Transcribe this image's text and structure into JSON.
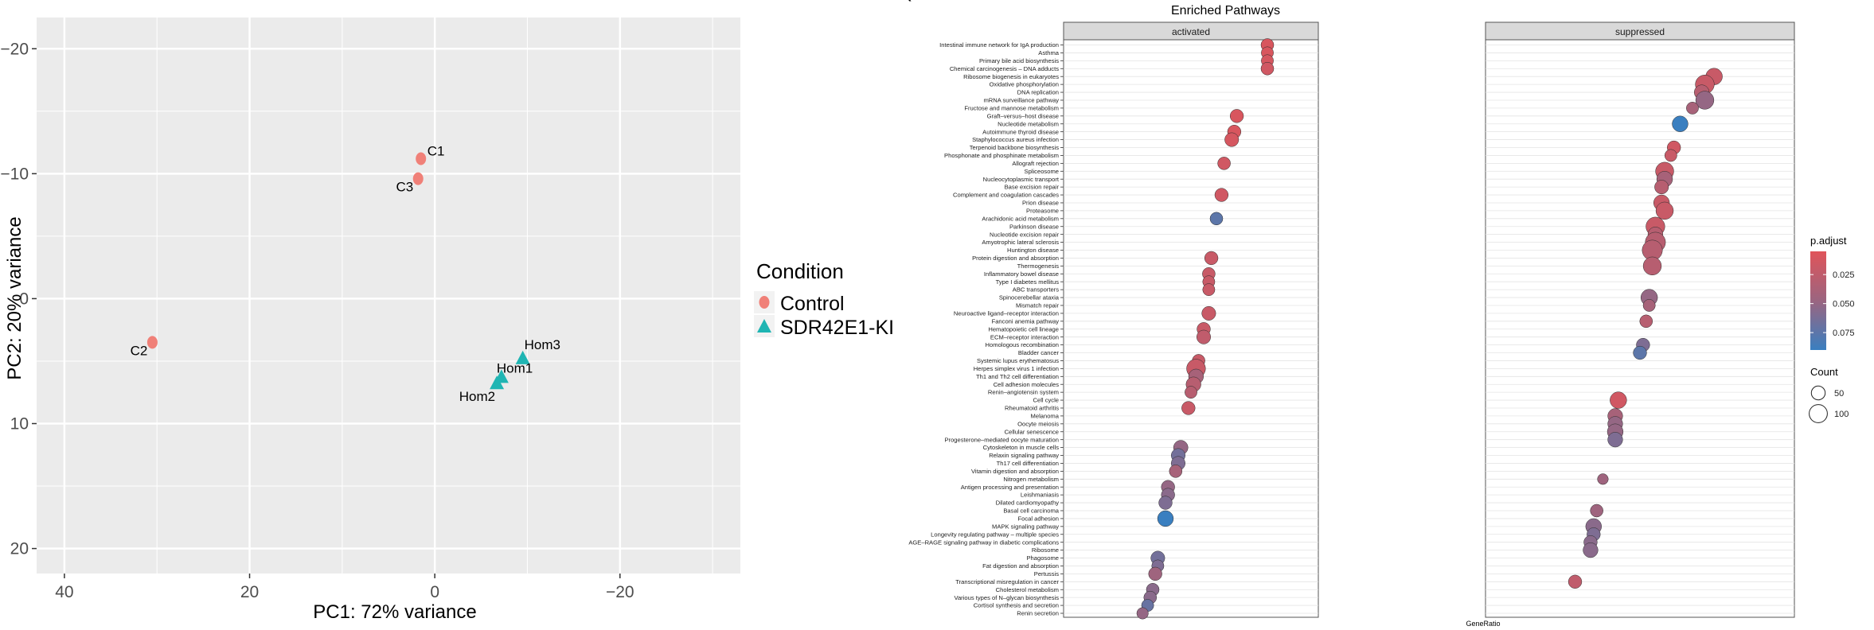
{
  "panel_label_fragment": "(",
  "colors": {
    "control": "#F08078",
    "ki": "#1FB5B3",
    "panel_bg": "#EBEBEB",
    "grid": "#FFFFFF",
    "strip_bg": "#D9D9D9",
    "padj_high": "#E0545A",
    "padj_low": "#3A7FC0"
  },
  "chart_data": [
    {
      "type": "scatter",
      "title": "",
      "xlabel": "PC1: 72% variance",
      "ylabel": "PC2: 20% variance",
      "x_reversed": true,
      "y_reversed": true,
      "xlim": [
        43,
        -33
      ],
      "ylim": [
        -22.5,
        22
      ],
      "xticks": [
        40,
        20,
        0,
        -20
      ],
      "yticks": [
        -20,
        -10,
        0,
        10,
        20
      ],
      "grid": true,
      "legend": {
        "title": "Condition",
        "placement": "right",
        "entries": [
          {
            "label": "Control",
            "shape": "circle",
            "color": "#F08078"
          },
          {
            "label": "SDR42E1-KI",
            "shape": "triangle",
            "color": "#1FB5B3"
          }
        ]
      },
      "points": [
        {
          "label": "C1",
          "group": "Control",
          "x": 1.5,
          "y": -11.2
        },
        {
          "label": "C3",
          "group": "Control",
          "x": 1.8,
          "y": -9.6
        },
        {
          "label": "C2",
          "group": "Control",
          "x": 30.5,
          "y": 3.5
        },
        {
          "label": "Hom3",
          "group": "SDR42E1-KI",
          "x": -9.5,
          "y": 4.8
        },
        {
          "label": "Hom1",
          "group": "SDR42E1-KI",
          "x": -7.2,
          "y": 6.3
        },
        {
          "label": "Hom2",
          "group": "SDR42E1-KI",
          "x": -6.7,
          "y": 6.8
        }
      ]
    },
    {
      "type": "scatter",
      "title": "Enriched Pathways",
      "xlabel": "GeneRatio",
      "ylabel": "",
      "facets": [
        "activated",
        "suppressed"
      ],
      "xlim": [
        0,
        1
      ],
      "legend": {
        "placement": "right",
        "color_title": "p.adjust",
        "color_ticks": [
          0.025,
          0.05,
          0.075
        ],
        "color_range": [
          0.005,
          0.09
        ],
        "size_title": "Count",
        "size_ticks": [
          50,
          100
        ]
      },
      "pathways": [
        {
          "name": "Intestinal immune network for IgA production",
          "facet": "activated",
          "x": 0.8,
          "count": 40,
          "padj": 0.01
        },
        {
          "name": "Asthma",
          "facet": "activated",
          "x": 0.8,
          "count": 35,
          "padj": 0.01
        },
        {
          "name": "Primary bile acid biosynthesis",
          "facet": "activated",
          "x": 0.8,
          "count": 35,
          "padj": 0.012
        },
        {
          "name": "Chemical carcinogenesis – DNA adducts",
          "facet": "activated",
          "x": 0.8,
          "count": 40,
          "padj": 0.015
        },
        {
          "name": "Ribosome biogenesis in eukaryotes",
          "facet": "suppressed",
          "x": 0.74,
          "count": 80,
          "padj": 0.02
        },
        {
          "name": "Oxidative phosphorylation",
          "facet": "suppressed",
          "x": 0.71,
          "count": 110,
          "padj": 0.02
        },
        {
          "name": "DNA replication",
          "facet": "suppressed",
          "x": 0.7,
          "count": 60,
          "padj": 0.03
        },
        {
          "name": "mRNA surveillance pathway",
          "facet": "suppressed",
          "x": 0.71,
          "count": 100,
          "padj": 0.05
        },
        {
          "name": "Fructose and mannose metabolism",
          "facet": "suppressed",
          "x": 0.67,
          "count": 35,
          "padj": 0.04
        },
        {
          "name": "Graft–versus–host disease",
          "facet": "activated",
          "x": 0.68,
          "count": 45,
          "padj": 0.01
        },
        {
          "name": "Nucleotide metabolism",
          "facet": "suppressed",
          "x": 0.63,
          "count": 70,
          "padj": 0.09
        },
        {
          "name": "Autoimmune thyroid disease",
          "facet": "activated",
          "x": 0.67,
          "count": 45,
          "padj": 0.01
        },
        {
          "name": "Staphylococcus aureus infection",
          "facet": "activated",
          "x": 0.66,
          "count": 50,
          "padj": 0.012
        },
        {
          "name": "Terpenoid backbone biosynthesis",
          "facet": "suppressed",
          "x": 0.61,
          "count": 45,
          "padj": 0.015
        },
        {
          "name": "Phosphonate and phosphinate metabolism",
          "facet": "suppressed",
          "x": 0.6,
          "count": 35,
          "padj": 0.02
        },
        {
          "name": "Allograft rejection",
          "facet": "activated",
          "x": 0.63,
          "count": 40,
          "padj": 0.015
        },
        {
          "name": "Spliceosome",
          "facet": "suppressed",
          "x": 0.58,
          "count": 100,
          "padj": 0.02
        },
        {
          "name": "Nucleocytoplasmic transport",
          "facet": "suppressed",
          "x": 0.58,
          "count": 70,
          "padj": 0.04
        },
        {
          "name": "Base excision repair",
          "facet": "suppressed",
          "x": 0.57,
          "count": 50,
          "padj": 0.03
        },
        {
          "name": "Complement and coagulation cascades",
          "facet": "activated",
          "x": 0.62,
          "count": 45,
          "padj": 0.015
        },
        {
          "name": "Prion disease",
          "facet": "suppressed",
          "x": 0.57,
          "count": 70,
          "padj": 0.02
        },
        {
          "name": "Proteasome",
          "facet": "suppressed",
          "x": 0.58,
          "count": 90,
          "padj": 0.02
        },
        {
          "name": "Arachidonic acid metabolism",
          "facet": "activated",
          "x": 0.6,
          "count": 40,
          "padj": 0.075
        },
        {
          "name": "Parkinson disease",
          "facet": "suppressed",
          "x": 0.55,
          "count": 110,
          "padj": 0.02
        },
        {
          "name": "Nucleotide excision repair",
          "facet": "suppressed",
          "x": 0.55,
          "count": 60,
          "padj": 0.03
        },
        {
          "name": "Amyotrophic lateral sclerosis",
          "facet": "suppressed",
          "x": 0.55,
          "count": 130,
          "padj": 0.03
        },
        {
          "name": "Huntington disease",
          "facet": "suppressed",
          "x": 0.54,
          "count": 130,
          "padj": 0.03
        },
        {
          "name": "Protein digestion and absorption",
          "facet": "activated",
          "x": 0.58,
          "count": 45,
          "padj": 0.02
        },
        {
          "name": "Thermogenesis",
          "facet": "suppressed",
          "x": 0.54,
          "count": 100,
          "padj": 0.03
        },
        {
          "name": "Inflammatory bowel disease",
          "facet": "activated",
          "x": 0.57,
          "count": 40,
          "padj": 0.02
        },
        {
          "name": "Type I diabetes mellitus",
          "facet": "activated",
          "x": 0.57,
          "count": 35,
          "padj": 0.02
        },
        {
          "name": "ABC transporters",
          "facet": "activated",
          "x": 0.57,
          "count": 35,
          "padj": 0.02
        },
        {
          "name": "Spinocerebellar ataxia",
          "facet": "suppressed",
          "x": 0.53,
          "count": 80,
          "padj": 0.05
        },
        {
          "name": "Mismatch repair",
          "facet": "suppressed",
          "x": 0.53,
          "count": 35,
          "padj": 0.04
        },
        {
          "name": "Neuroactive ligand–receptor interaction",
          "facet": "activated",
          "x": 0.57,
          "count": 50,
          "padj": 0.02
        },
        {
          "name": "Fanconi anemia pathway",
          "facet": "suppressed",
          "x": 0.52,
          "count": 40,
          "padj": 0.03
        },
        {
          "name": "Hematopoietic cell lineage",
          "facet": "activated",
          "x": 0.55,
          "count": 45,
          "padj": 0.02
        },
        {
          "name": "ECM–receptor interaction",
          "facet": "activated",
          "x": 0.55,
          "count": 50,
          "padj": 0.025
        },
        {
          "name": "Homologous recombination",
          "facet": "suppressed",
          "x": 0.51,
          "count": 45,
          "padj": 0.06
        },
        {
          "name": "Bladder cancer",
          "facet": "suppressed",
          "x": 0.5,
          "count": 45,
          "padj": 0.075
        },
        {
          "name": "Systemic lupus erythematosus",
          "facet": "activated",
          "x": 0.53,
          "count": 40,
          "padj": 0.02
        },
        {
          "name": "Herpes simplex virus 1 infection",
          "facet": "activated",
          "x": 0.52,
          "count": 110,
          "padj": 0.02
        },
        {
          "name": "Th1 and Th2 cell differentiation",
          "facet": "activated",
          "x": 0.52,
          "count": 60,
          "padj": 0.04
        },
        {
          "name": "Cell adhesion molecules",
          "facet": "activated",
          "x": 0.51,
          "count": 60,
          "padj": 0.03
        },
        {
          "name": "Renin–angiotensin system",
          "facet": "activated",
          "x": 0.5,
          "count": 35,
          "padj": 0.03
        },
        {
          "name": "Cell cycle",
          "facet": "suppressed",
          "x": 0.43,
          "count": 80,
          "padj": 0.015
        },
        {
          "name": "Rheumatoid arthritis",
          "facet": "activated",
          "x": 0.49,
          "count": 45,
          "padj": 0.02
        },
        {
          "name": "Melanoma",
          "facet": "suppressed",
          "x": 0.42,
          "count": 60,
          "padj": 0.04
        },
        {
          "name": "Oocyte meiosis",
          "facet": "suppressed",
          "x": 0.42,
          "count": 60,
          "padj": 0.05
        },
        {
          "name": "Cellular senescence",
          "facet": "suppressed",
          "x": 0.42,
          "count": 70,
          "padj": 0.05
        },
        {
          "name": "Progesterone–mediated oocyte maturation",
          "facet": "suppressed",
          "x": 0.42,
          "count": 60,
          "padj": 0.06
        },
        {
          "name": "Cytoskeleton in muscle cells",
          "facet": "activated",
          "x": 0.46,
          "count": 55,
          "padj": 0.05
        },
        {
          "name": "Relaxin signaling pathway",
          "facet": "activated",
          "x": 0.45,
          "count": 50,
          "padj": 0.065
        },
        {
          "name": "Th17 cell differentiation",
          "facet": "activated",
          "x": 0.45,
          "count": 50,
          "padj": 0.06
        },
        {
          "name": "Vitamin digestion and absorption",
          "facet": "activated",
          "x": 0.44,
          "count": 40,
          "padj": 0.04
        },
        {
          "name": "Nitrogen metabolism",
          "facet": "suppressed",
          "x": 0.38,
          "count": 25,
          "padj": 0.045
        },
        {
          "name": "Antigen processing and presentation",
          "facet": "activated",
          "x": 0.41,
          "count": 45,
          "padj": 0.05
        },
        {
          "name": "Leishmaniasis",
          "facet": "activated",
          "x": 0.41,
          "count": 45,
          "padj": 0.055
        },
        {
          "name": "Dilated cardiomyopathy",
          "facet": "activated",
          "x": 0.4,
          "count": 45,
          "padj": 0.06
        },
        {
          "name": "Basal cell carcinoma",
          "facet": "suppressed",
          "x": 0.36,
          "count": 40,
          "padj": 0.045
        },
        {
          "name": "Focal adhesion",
          "facet": "activated",
          "x": 0.4,
          "count": 70,
          "padj": 0.09
        },
        {
          "name": "MAPK signaling pathway",
          "facet": "suppressed",
          "x": 0.35,
          "count": 70,
          "padj": 0.055
        },
        {
          "name": "Longevity regulating pathway – multiple species",
          "facet": "suppressed",
          "x": 0.35,
          "count": 45,
          "padj": 0.06
        },
        {
          "name": "AGE–RAGE signaling pathway in diabetic complications",
          "facet": "suppressed",
          "x": 0.34,
          "count": 45,
          "padj": 0.055
        },
        {
          "name": "Ribosome",
          "facet": "suppressed",
          "x": 0.34,
          "count": 60,
          "padj": 0.055
        },
        {
          "name": "Phagosome",
          "facet": "activated",
          "x": 0.37,
          "count": 50,
          "padj": 0.065
        },
        {
          "name": "Fat digestion and absorption",
          "facet": "activated",
          "x": 0.37,
          "count": 35,
          "padj": 0.06
        },
        {
          "name": "Pertussis",
          "facet": "activated",
          "x": 0.36,
          "count": 45,
          "padj": 0.045
        },
        {
          "name": "Transcriptional misregulation in cancer",
          "facet": "suppressed",
          "x": 0.29,
          "count": 45,
          "padj": 0.025
        },
        {
          "name": "Cholesterol metabolism",
          "facet": "activated",
          "x": 0.35,
          "count": 40,
          "padj": 0.055
        },
        {
          "name": "Various types of N–glycan biosynthesis",
          "facet": "activated",
          "x": 0.34,
          "count": 40,
          "padj": 0.055
        },
        {
          "name": "Cortisol synthesis and secretion",
          "facet": "activated",
          "x": 0.33,
          "count": 35,
          "padj": 0.07
        },
        {
          "name": "Renin secretion",
          "facet": "activated",
          "x": 0.31,
          "count": 30,
          "padj": 0.05
        }
      ]
    }
  ]
}
